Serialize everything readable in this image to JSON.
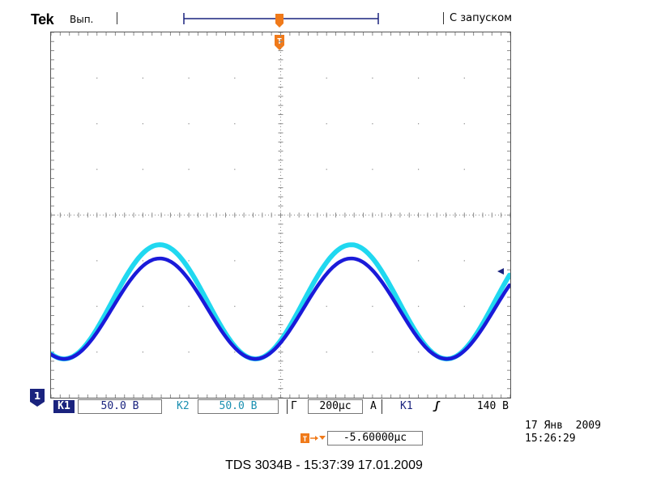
{
  "header": {
    "brand": "Tek",
    "run_state": "Вып.",
    "trigger_mode": "С запуском"
  },
  "screen": {
    "divisions_x": 10,
    "divisions_y": 8,
    "colors": {
      "trace_ch1": "#1a1ad9",
      "trace_ch2": "#20d8f0",
      "marker": "#f07a1a",
      "grid": "#8a8a8a",
      "indicator_dark": "#1a237e"
    },
    "waveform": {
      "periods_on_screen": 2.4,
      "ch1_center_div": -2.05,
      "ch1_amplitude_div": 1.1,
      "ch2_center_div": -1.9,
      "ch2_amplitude_div": 1.25
    },
    "ch1_ground_marker": "1",
    "trigger_marker": "T"
  },
  "readouts": {
    "ch1_label": "К1",
    "ch1_scale": "50.0 В",
    "ch2_label": "К2",
    "ch2_scale": "50.0 В",
    "horizontal_label": "Г",
    "horizontal_scale": "200µс",
    "acquire_label": "А",
    "trigger_source": "К1",
    "trigger_slope": "ʃ",
    "trigger_level": "140 В",
    "trigger_position": "-5.60000µс"
  },
  "timestamp": {
    "date": "17 Янв  2009",
    "time": "15:26:29"
  },
  "footer": {
    "caption": "TDS 3034B - 15:37:39   17.01.2009"
  }
}
